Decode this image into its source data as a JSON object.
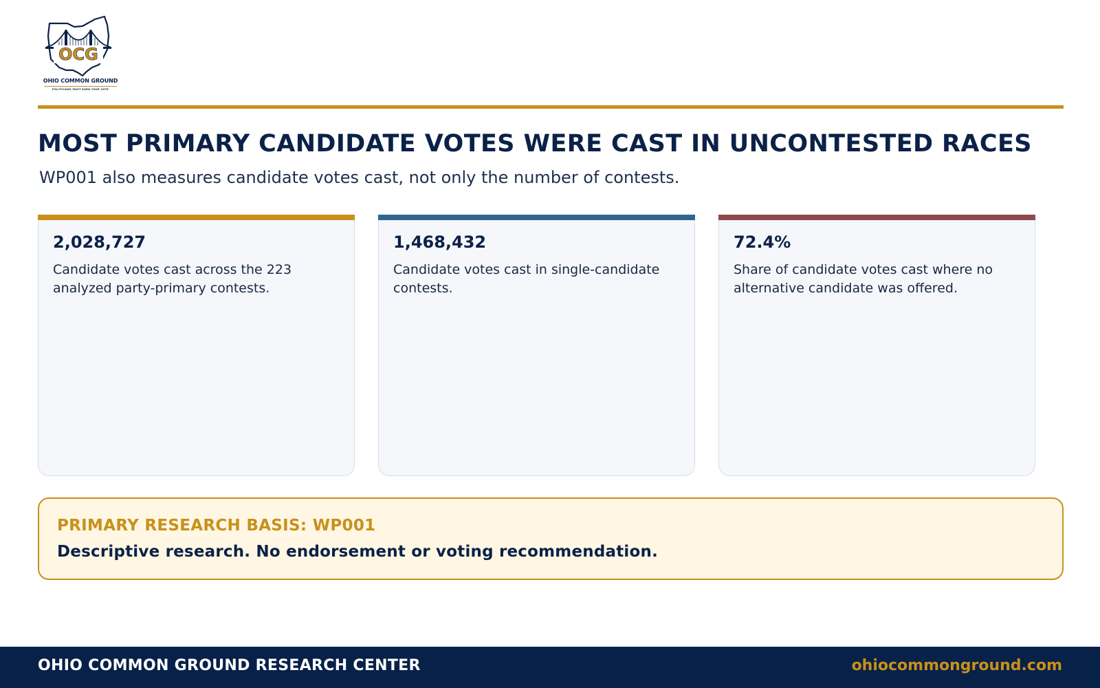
{
  "brand": {
    "logo_initials": "OCG",
    "logo_name": "OHIO COMMON GROUND",
    "logo_tagline": "POLITICIANS MUST EARN YOUR VOTE",
    "logo_icon": "ohio-bridge-emblem",
    "colors": {
      "navy": "#0b2148",
      "gold": "#c9901a",
      "steel_blue": "#2e6690",
      "maroon": "#8e4a4d"
    }
  },
  "header": {
    "title": "MOST PRIMARY CANDIDATE VOTES WERE CAST IN UNCONTESTED RACES",
    "subtitle": "WP001 also measures candidate votes cast, not only the number of contests."
  },
  "stats": [
    {
      "value": "2,028,727",
      "description": "Candidate votes cast across the 223 analyzed party-primary contests.",
      "accent": "#c9901a"
    },
    {
      "value": "1,468,432",
      "description": "Candidate votes cast in single-candidate contests.",
      "accent": "#2e6690"
    },
    {
      "value": "72.4%",
      "description": "Share of candidate votes cast where no alternative candidate was offered.",
      "accent": "#8e4a4d"
    }
  ],
  "basis": {
    "label": "PRIMARY RESEARCH BASIS: WP001",
    "text": "Descriptive research. No endorsement or voting recommendation."
  },
  "footer": {
    "name": "OHIO COMMON GROUND RESEARCH CENTER",
    "url": "ohiocommonground.com"
  }
}
